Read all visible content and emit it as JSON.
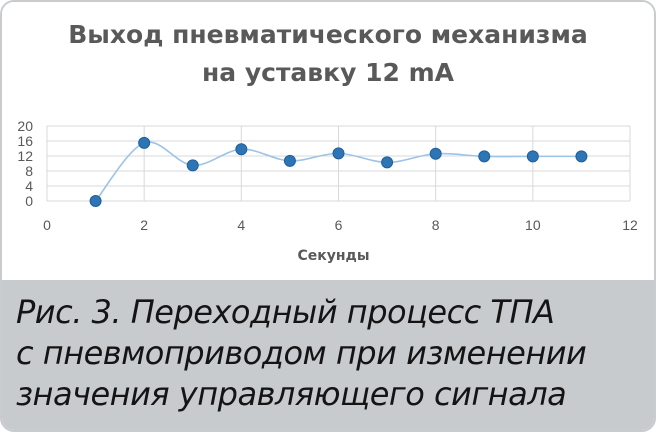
{
  "chart_data": {
    "type": "scatter",
    "title_lines": [
      "Выход пневматического механизма",
      "на уставку 12 mA"
    ],
    "xlabel": "Секунды",
    "ylabel": "",
    "xlim": [
      0,
      12
    ],
    "ylim": [
      0,
      20
    ],
    "x_ticks": [
      "0",
      "2",
      "4",
      "6",
      "8",
      "10",
      "12"
    ],
    "y_ticks": [
      "0",
      "4",
      "8",
      "12",
      "16",
      "20"
    ],
    "grid": true,
    "smooth_line": true,
    "marker_color": "#2e75b6",
    "line_color": "#9dc3e6",
    "x": [
      1,
      2,
      3,
      4,
      5,
      6,
      7,
      8,
      9,
      10,
      11
    ],
    "y": [
      0,
      15.5,
      9.5,
      13.8,
      10.7,
      12.7,
      10.3,
      12.6,
      11.9,
      11.9,
      11.9
    ]
  },
  "caption": {
    "lines": [
      "Рис. 3. Переходный процесс ТПА",
      "с пневмоприводом при изменении",
      "значения управляющего сигнала"
    ]
  }
}
